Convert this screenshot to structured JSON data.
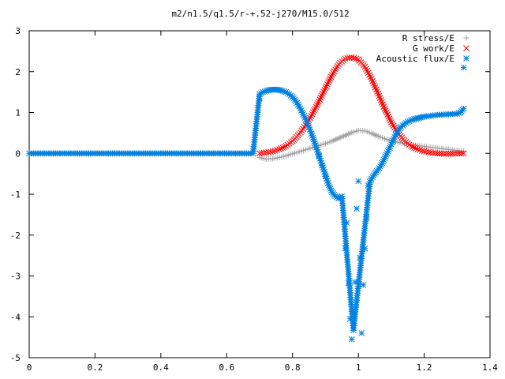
{
  "chart_data": {
    "type": "scatter",
    "title": "m2/n1.5/q1.5/r-+.52-j270/M15.0/512",
    "xlabel": "",
    "ylabel": "",
    "xlim": [
      0,
      1.4
    ],
    "ylim": [
      -5,
      3
    ],
    "xticks": [
      0,
      0.2,
      0.4,
      0.6,
      0.8,
      1,
      1.2,
      1.4
    ],
    "xtick_labels": [
      "0",
      "0.2",
      "0.4",
      "0.6",
      "0.8",
      "1",
      "1.2",
      "1.4"
    ],
    "yticks": [
      -5,
      -4,
      -3,
      -2,
      -1,
      0,
      1,
      2,
      3
    ],
    "ytick_labels": [
      "-5",
      "-4",
      "-3",
      "-2",
      "-1",
      "0",
      "1",
      "2",
      "3"
    ],
    "legend_position": "top-right",
    "grid": false,
    "series": [
      {
        "name": "R stress/E",
        "marker": "plus",
        "color": "#a0a0a0",
        "x": [
          0.7,
          0.72,
          0.74,
          0.76,
          0.78,
          0.8,
          0.82,
          0.84,
          0.86,
          0.88,
          0.9,
          0.92,
          0.94,
          0.96,
          0.98,
          1.0,
          1.02,
          1.04,
          1.06,
          1.08,
          1.1,
          1.12,
          1.14,
          1.16,
          1.18,
          1.2,
          1.22,
          1.24,
          1.26,
          1.28,
          1.3,
          1.32
        ],
        "y": [
          -0.1,
          -0.14,
          -0.13,
          -0.1,
          -0.06,
          -0.01,
          0.04,
          0.09,
          0.14,
          0.19,
          0.24,
          0.3,
          0.37,
          0.44,
          0.51,
          0.56,
          0.55,
          0.49,
          0.42,
          0.36,
          0.31,
          0.27,
          0.24,
          0.21,
          0.19,
          0.17,
          0.15,
          0.13,
          0.11,
          0.09,
          0.07,
          0.05
        ]
      },
      {
        "name": "G work/E",
        "marker": "cross",
        "color": "#ff0000",
        "x": [
          0.7,
          0.72,
          0.74,
          0.76,
          0.78,
          0.8,
          0.82,
          0.84,
          0.86,
          0.88,
          0.9,
          0.92,
          0.94,
          0.96,
          0.98,
          1.0,
          1.02,
          1.04,
          1.06,
          1.08,
          1.1,
          1.12,
          1.14,
          1.16,
          1.18,
          1.2,
          1.22,
          1.24,
          1.26,
          1.28,
          1.3,
          1.32
        ],
        "y": [
          0.0,
          0.02,
          0.05,
          0.1,
          0.18,
          0.3,
          0.47,
          0.69,
          0.96,
          1.27,
          1.6,
          1.92,
          2.18,
          2.32,
          2.35,
          2.3,
          2.12,
          1.82,
          1.46,
          1.09,
          0.76,
          0.5,
          0.31,
          0.18,
          0.1,
          0.05,
          0.02,
          0.0,
          -0.01,
          -0.01,
          0.0,
          0.0
        ]
      },
      {
        "name": "Acoustic flux/E",
        "marker": "star",
        "color": "#0080e0",
        "x": [
          0.0,
          0.04,
          0.08,
          0.12,
          0.16,
          0.2,
          0.24,
          0.28,
          0.32,
          0.36,
          0.4,
          0.44,
          0.48,
          0.52,
          0.56,
          0.6,
          0.64,
          0.68,
          0.7,
          0.7,
          0.71,
          0.72,
          0.73,
          0.74,
          0.75,
          0.76,
          0.77,
          0.78,
          0.79,
          0.8,
          0.81,
          0.82,
          0.83,
          0.84,
          0.85,
          0.86,
          0.87,
          0.88,
          0.89,
          0.9,
          0.91,
          0.92,
          0.93,
          0.94,
          0.95,
          0.96,
          0.965,
          0.97,
          0.975,
          0.98,
          0.985,
          0.99,
          0.995,
          1.0,
          1.005,
          1.01,
          1.015,
          1.02,
          1.025,
          1.03,
          1.035,
          1.04,
          1.05,
          1.06,
          1.07,
          1.08,
          1.09,
          1.1,
          1.11,
          1.12,
          1.13,
          1.14,
          1.15,
          1.16,
          1.17,
          1.18,
          1.19,
          1.2,
          1.22,
          1.24,
          1.26,
          1.28,
          1.3,
          1.31,
          1.32,
          1.32
        ],
        "y": [
          0.0,
          0.0,
          0.0,
          0.0,
          0.0,
          0.0,
          0.0,
          0.0,
          0.0,
          0.0,
          0.0,
          0.0,
          0.0,
          0.0,
          0.0,
          0.0,
          0.0,
          0.0,
          1.35,
          1.45,
          1.5,
          1.53,
          1.55,
          1.56,
          1.56,
          1.55,
          1.53,
          1.5,
          1.45,
          1.38,
          1.28,
          1.15,
          1.0,
          0.83,
          0.64,
          0.43,
          0.2,
          -0.05,
          -0.3,
          -0.55,
          -0.78,
          -0.95,
          -1.05,
          -1.1,
          -1.05,
          -2.33,
          -1.7,
          -3.17,
          -4.05,
          -4.55,
          -4.33,
          -3.15,
          -1.35,
          -0.68,
          -2.55,
          -4.4,
          -3.22,
          -2.33,
          -1.58,
          -0.78,
          -0.7,
          -0.62,
          -0.5,
          -0.4,
          -0.28,
          -0.12,
          0.05,
          0.22,
          0.4,
          0.55,
          0.65,
          0.72,
          0.77,
          0.81,
          0.84,
          0.86,
          0.88,
          0.9,
          0.92,
          0.94,
          0.95,
          0.96,
          0.97,
          1.0,
          1.1,
          2.1
        ]
      }
    ]
  }
}
